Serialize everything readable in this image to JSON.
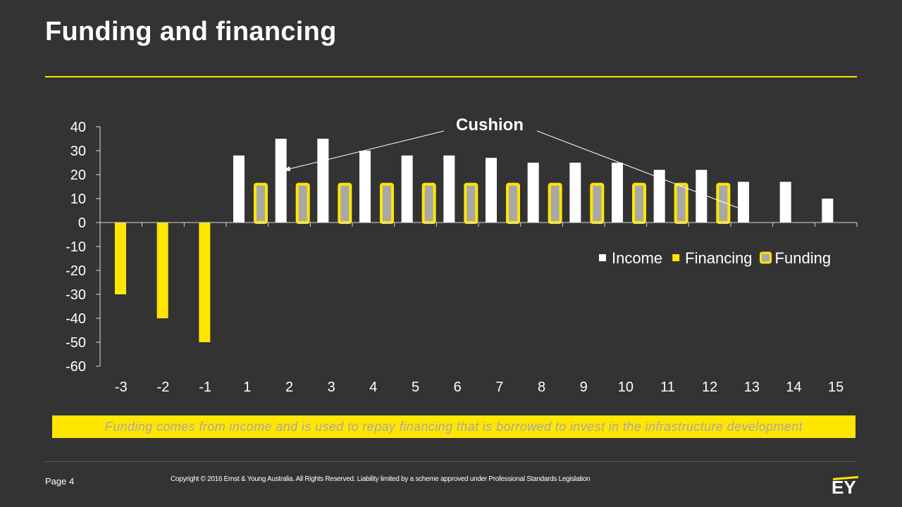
{
  "slide": {
    "title": "Funding and financing",
    "caption": "Funding comes from income and is used to repay financing that is borrowed to invest in the infrastructure development",
    "page_label": "Page 4",
    "copyright": "Copyright © 2016 Ernst & Young Australia. All Rights Reserved. Liability limited by a scheme approved under Professional Standards Legislation",
    "logo_text": "EY"
  },
  "colors": {
    "background": "#333333",
    "accent": "#ffe600",
    "income": "#ffffff",
    "funding_fill": "#a8a8a8"
  },
  "chart_data": {
    "type": "bar",
    "categories": [
      "-3",
      "-2",
      "-1",
      "1",
      "2",
      "3",
      "4",
      "5",
      "6",
      "7",
      "8",
      "9",
      "10",
      "11",
      "12",
      "13",
      "14",
      "15"
    ],
    "series": [
      {
        "name": "Income",
        "values": [
          null,
          null,
          null,
          28,
          35,
          35,
          30,
          28,
          28,
          27,
          25,
          25,
          25,
          22,
          22,
          17,
          17,
          10
        ]
      },
      {
        "name": "Financing",
        "values": [
          -30,
          -40,
          -50,
          null,
          null,
          null,
          null,
          null,
          null,
          null,
          null,
          null,
          null,
          null,
          null,
          null,
          null,
          null
        ]
      },
      {
        "name": "Funding",
        "values": [
          null,
          null,
          null,
          16,
          16,
          16,
          16,
          16,
          16,
          16,
          16,
          16,
          16,
          16,
          16,
          null,
          null,
          null
        ]
      }
    ],
    "ylim": [
      -60,
      40
    ],
    "yticks": [
      40,
      30,
      20,
      10,
      0,
      -10,
      -20,
      -30,
      -40,
      -50,
      -60
    ],
    "annotation": "Cushion",
    "legend_position": "right",
    "grid": false
  }
}
